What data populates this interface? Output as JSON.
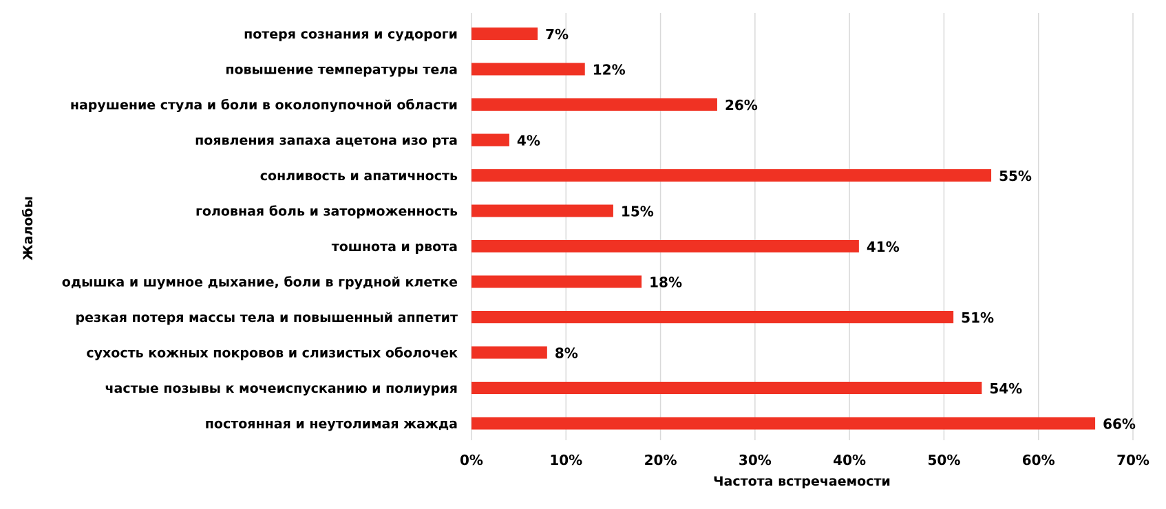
{
  "chart_data": {
    "type": "bar",
    "orientation": "horizontal",
    "xlabel": "Частота встречаемости",
    "ylabel": "Жалобы",
    "categories": [
      "потеря сознания и судороги",
      "повышение температуры тела",
      "нарушение стула и боли в околопупочной области",
      "появления запаха ацетона изо рта",
      "сонливость и апатичность",
      "головная боль и заторможенность",
      "тошнота и рвота",
      "одышка и шумное дыхание, боли в грудной клетке",
      "резкая потеря массы тела и повышенный аппетит",
      "сухость кожных покровов и слизистых оболочек",
      "частые позывы к мочеиспусканию и полиурия",
      "постоянная и неутолимая жажда"
    ],
    "values": [
      7,
      12,
      26,
      4,
      55,
      15,
      41,
      18,
      51,
      8,
      54,
      66
    ],
    "value_labels": [
      "7%",
      "12%",
      "26%",
      "4%",
      "55%",
      "15%",
      "41%",
      "18%",
      "51%",
      "8%",
      "54%",
      "66%"
    ],
    "xticks": [
      "0%",
      "10%",
      "20%",
      "30%",
      "40%",
      "50%",
      "60%",
      "70%"
    ],
    "xlim": [
      0,
      70
    ],
    "grid": true,
    "bar_color": "#f03223",
    "grid_color": "#d9d9d9"
  }
}
